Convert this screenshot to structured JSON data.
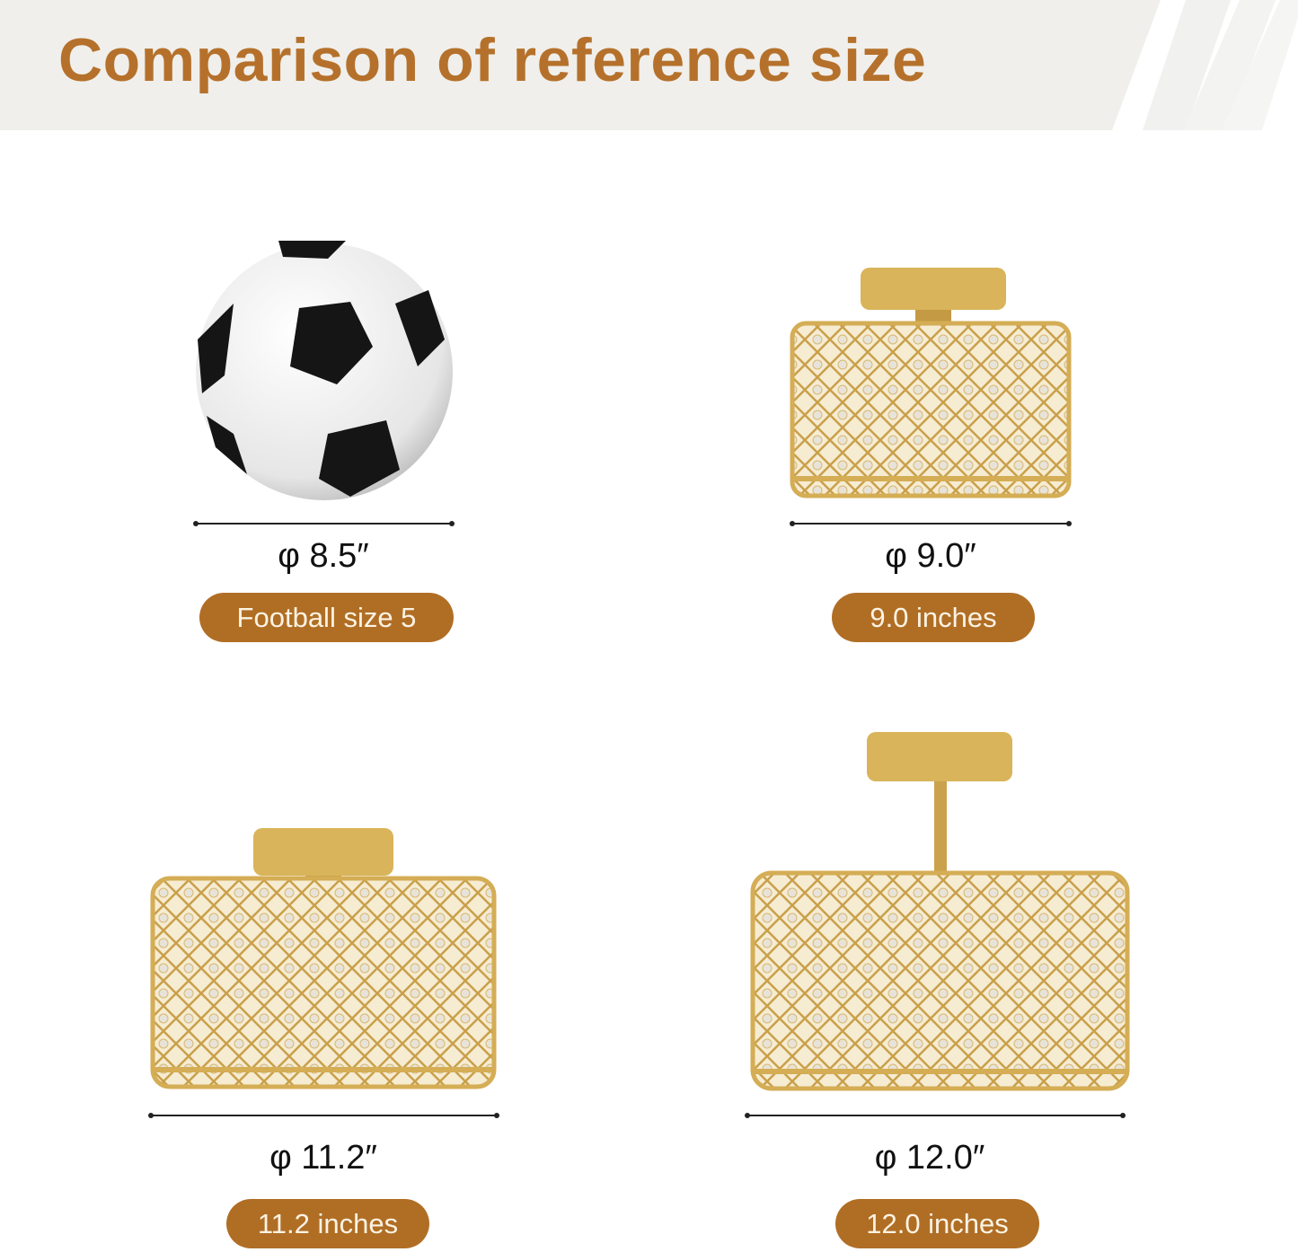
{
  "title": "Comparison of reference size",
  "colors": {
    "accent": "#b06e25",
    "title": "#b5712b",
    "header_bg": "#f0efeb",
    "gold": "#d9b45a"
  },
  "items": [
    {
      "image": "football",
      "diameter": "φ 8.5″",
      "label": "Football size 5"
    },
    {
      "image": "ceiling-lamp-small",
      "diameter": "φ 9.0″",
      "label": "9.0 inches"
    },
    {
      "image": "ceiling-lamp-medium",
      "diameter": "φ 11.2″",
      "label": "11.2 inches"
    },
    {
      "image": "ceiling-lamp-large-with-stem",
      "diameter": "φ 12.0″",
      "label": "12.0 inches"
    }
  ]
}
